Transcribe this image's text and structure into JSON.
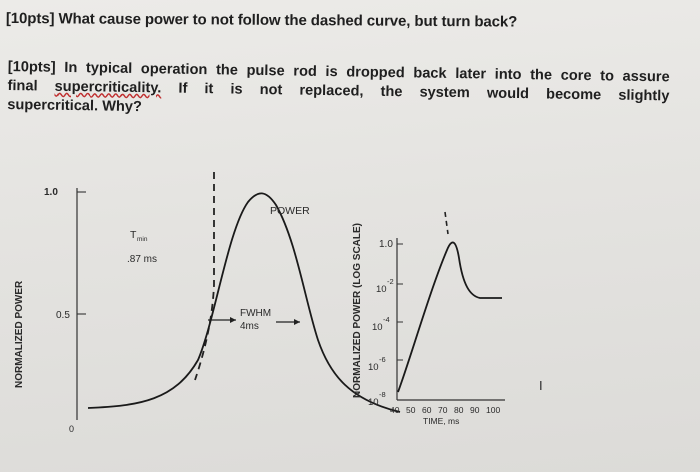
{
  "questions": {
    "q1": "[10pts] What cause power to not follow the dashed curve, but turn back?",
    "q2_line1_words": [
      "[10pts]",
      "In",
      "typical",
      "operation",
      "the",
      "pulse",
      "rod",
      "is",
      "dropped",
      "back",
      "later",
      "into",
      "the",
      "core",
      "to",
      "assure"
    ],
    "q2_line2_words": [
      "final",
      "supercriticality.",
      "If",
      "it",
      "is",
      "not",
      "replaced,",
      "the",
      "system",
      "would",
      "become",
      "slightly"
    ],
    "q2_line3": "supercritical. Why?"
  },
  "figure": {
    "left_panel": {
      "ylabel": "NORMALIZED POWER",
      "y_ticks": [
        "1.0",
        "0.5",
        "0"
      ],
      "curve_label": "POWER",
      "tmin_label": "T",
      "tmin_sub": "min",
      "tmin_value": ".87 ms",
      "fwhm_label": "FWHM",
      "fwhm_value": "4ms"
    },
    "right_panel": {
      "ylabel": "NORMALIZED POWER   (LOG SCALE)",
      "y_ticks": [
        {
          "base": "1.0",
          "exp": ""
        },
        {
          "base": "10",
          "exp": "-2"
        },
        {
          "base": "10",
          "exp": "-4"
        },
        {
          "base": "10",
          "exp": "-6"
        },
        {
          "base": "10",
          "exp": "-8"
        }
      ],
      "x_ticks": [
        "40",
        "50",
        "60",
        "70",
        "80",
        "90",
        "100"
      ],
      "xlabel": "TIME, ms"
    },
    "cursor_glyph": "I"
  },
  "colors": {
    "ink": "#1f1f1f",
    "paper": "#e6e5e2",
    "underline": "#c03030"
  }
}
